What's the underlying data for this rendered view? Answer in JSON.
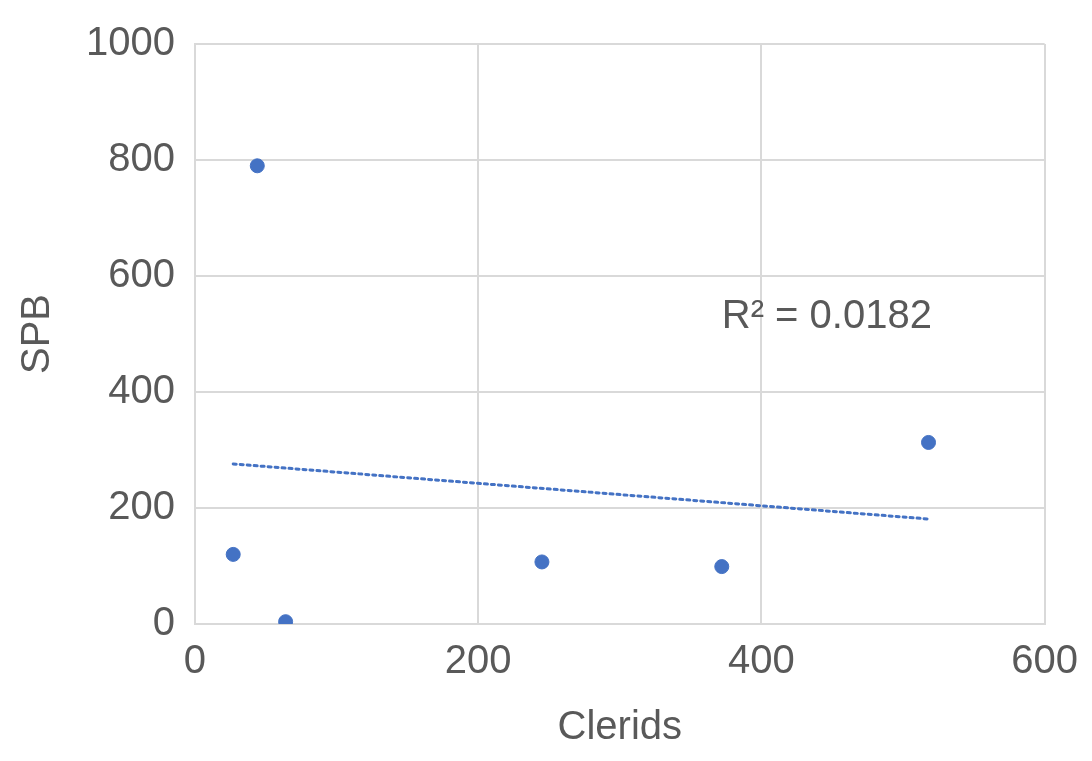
{
  "chart_data": {
    "type": "scatter",
    "xlabel": "Clerids",
    "ylabel": "SPB",
    "x": [
      27,
      44,
      64,
      245,
      372,
      518
    ],
    "series": [
      {
        "type": "scatter",
        "color": "#4472c4",
        "values": [
          120,
          790,
          4,
          107,
          99,
          313
        ],
        "marker": "circle"
      },
      {
        "type": "line",
        "color": "#4472c4",
        "x": [
          27,
          518
        ],
        "values": [
          276,
          181
        ],
        "line_style": "dotted",
        "marker": "none"
      }
    ],
    "xlim": [
      0,
      600
    ],
    "xticks": [
      0,
      200,
      400,
      600
    ],
    "ylim": [
      0,
      1000
    ],
    "yticks": [
      0,
      200,
      400,
      600,
      800,
      1000
    ],
    "grid": true,
    "legend": false,
    "annotations": [
      "R² = 0.0182"
    ]
  }
}
